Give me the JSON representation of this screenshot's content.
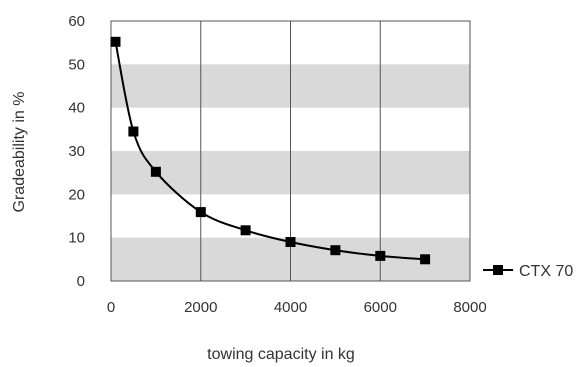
{
  "chart_data": {
    "type": "line",
    "xlabel": "towing capacity in kg",
    "ylabel": "Gradeability in %",
    "xlim": [
      0,
      8000
    ],
    "ylim": [
      0,
      60
    ],
    "x_ticks": [
      "0",
      "2000",
      "4000",
      "6000",
      "8000"
    ],
    "y_ticks": [
      "0",
      "10",
      "20",
      "30",
      "40",
      "50",
      "60"
    ],
    "grid": "vertical lines with alternating horizontal gray bands",
    "legend_position": "right",
    "series": [
      {
        "name": "CTX 70",
        "color": "#000000",
        "marker": "square",
        "x": [
          100,
          500,
          1000,
          2000,
          3000,
          4000,
          5000,
          6000,
          7000
        ],
        "y": [
          55.2,
          34.5,
          25.2,
          15.9,
          11.7,
          9.0,
          7.1,
          5.8,
          5.0
        ]
      }
    ]
  },
  "colors": {
    "band": "#d9d9d9",
    "grid": "#555555",
    "line": "#000000"
  }
}
